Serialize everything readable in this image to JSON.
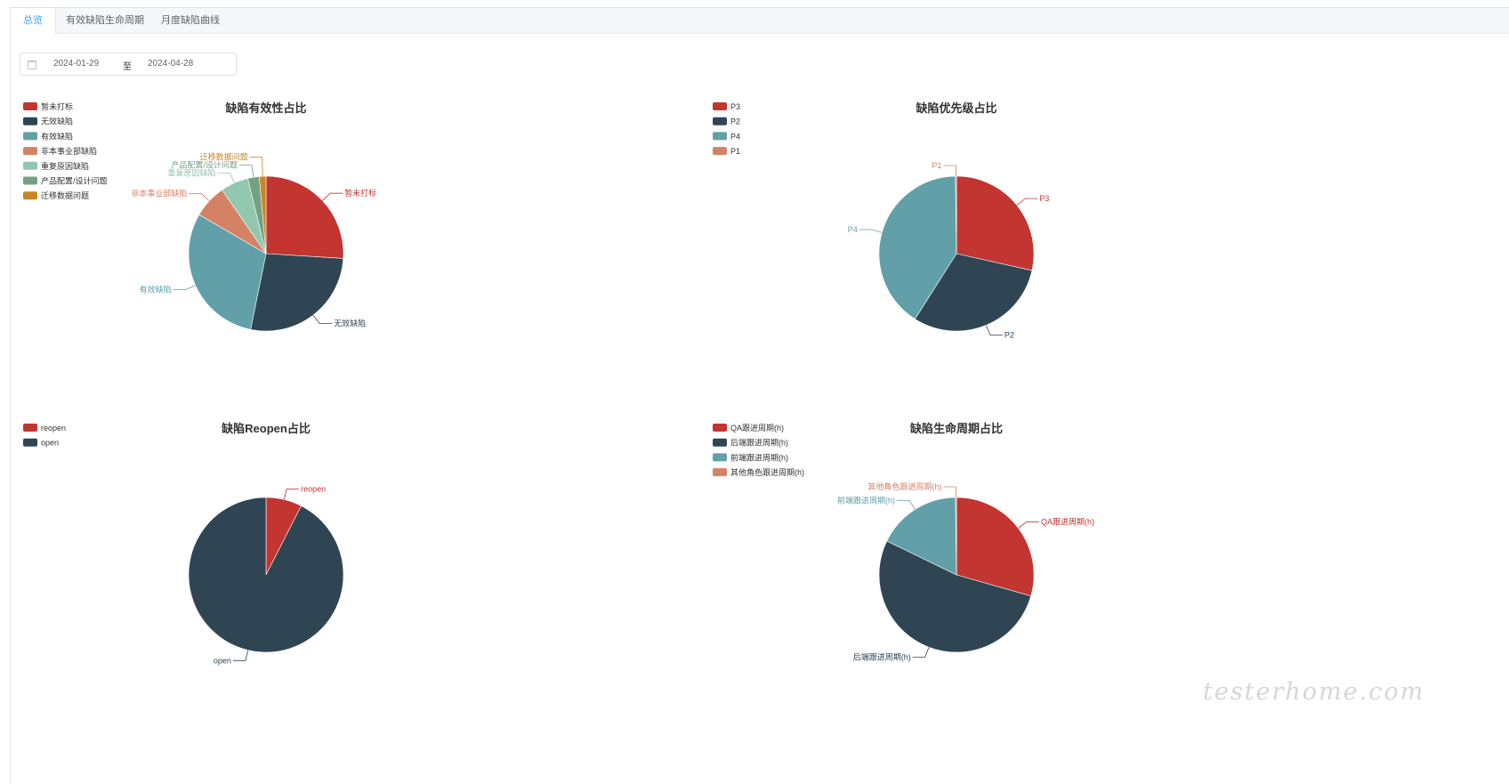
{
  "tabs": [
    {
      "label": "总览",
      "active": true
    },
    {
      "label": "有效缺陷生命周期",
      "active": false
    },
    {
      "label": "月度缺陷曲线",
      "active": false
    }
  ],
  "date_range": {
    "start": "2024-01-29",
    "separator": "至",
    "end": "2024-04-28"
  },
  "watermark": "testerhome.com",
  "chart_data": [
    {
      "type": "pie",
      "title": "缺陷有效性占比",
      "legend_position": "top-left",
      "labels": [
        "暂未打标",
        "无效缺陷",
        "有效缺陷",
        "非本事业部缺陷",
        "重复原因缺陷",
        "产品配置/设计问题",
        "迁移数据问题"
      ],
      "values": [
        26.0,
        27.2,
        30.2,
        7.0,
        5.8,
        2.4,
        1.4
      ],
      "colors": [
        "#c23531",
        "#2f4554",
        "#61a0a8",
        "#d48265",
        "#91c7ae",
        "#749f83",
        "#ca8622"
      ]
    },
    {
      "type": "pie",
      "title": "缺陷优先级占比",
      "legend_position": "top-left",
      "labels": [
        "P3",
        "P2",
        "P4",
        "P1"
      ],
      "values": [
        28.5,
        30.5,
        40.8,
        0.2
      ],
      "colors": [
        "#c23531",
        "#2f4554",
        "#61a0a8",
        "#d48265"
      ]
    },
    {
      "type": "pie",
      "title": "缺陷Reopen占比",
      "legend_position": "top-left",
      "labels": [
        "reopen",
        "open"
      ],
      "values": [
        7.5,
        92.5
      ],
      "colors": [
        "#c23531",
        "#2f4554"
      ]
    },
    {
      "type": "pie",
      "title": "缺陷生命周期占比",
      "legend_position": "top-left",
      "labels": [
        "QA跟进周期(h)",
        "后端跟进周期(h)",
        "前端跟进周期(h)",
        "其他角色跟进周期(h)"
      ],
      "values": [
        29.4,
        52.8,
        17.6,
        0.2
      ],
      "colors": [
        "#c23531",
        "#2f4554",
        "#61a0a8",
        "#d48265"
      ]
    }
  ]
}
